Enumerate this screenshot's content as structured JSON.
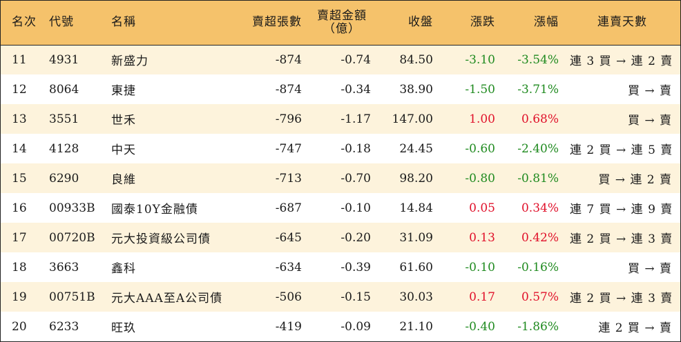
{
  "headers": {
    "rank": "名次",
    "code": "代號",
    "name": "名稱",
    "net_sell_shares": "賣超張數",
    "net_sell_amount_line1": "賣超金額",
    "net_sell_amount_line2": "（億）",
    "close": "收盤",
    "change": "漲跌",
    "change_pct": "漲幅",
    "streak": "連賣天數"
  },
  "rows": [
    {
      "rank": "11",
      "code": "4931",
      "name": "新盛力",
      "shares": "-874",
      "amount": "-0.74",
      "close": "84.50",
      "change": "-3.10",
      "pct": "-3.54%",
      "streak": "連 3 買 → 連 2 賣",
      "dir": "neg"
    },
    {
      "rank": "12",
      "code": "8064",
      "name": "東捷",
      "shares": "-874",
      "amount": "-0.34",
      "close": "38.90",
      "change": "-1.50",
      "pct": "-3.71%",
      "streak": "買 → 賣",
      "dir": "neg"
    },
    {
      "rank": "13",
      "code": "3551",
      "name": "世禾",
      "shares": "-796",
      "amount": "-1.17",
      "close": "147.00",
      "change": "1.00",
      "pct": "0.68%",
      "streak": "買 → 賣",
      "dir": "pos"
    },
    {
      "rank": "14",
      "code": "4128",
      "name": "中天",
      "shares": "-747",
      "amount": "-0.18",
      "close": "24.45",
      "change": "-0.60",
      "pct": "-2.40%",
      "streak": "連 2 買 → 連 5 賣",
      "dir": "neg"
    },
    {
      "rank": "15",
      "code": "6290",
      "name": "良維",
      "shares": "-713",
      "amount": "-0.70",
      "close": "98.20",
      "change": "-0.80",
      "pct": "-0.81%",
      "streak": "買 → 連 2 賣",
      "dir": "neg"
    },
    {
      "rank": "16",
      "code": "00933B",
      "name": "國泰10Y金融債",
      "shares": "-687",
      "amount": "-0.10",
      "close": "14.84",
      "change": "0.05",
      "pct": "0.34%",
      "streak": "連 7 買 → 連 9 賣",
      "dir": "pos"
    },
    {
      "rank": "17",
      "code": "00720B",
      "name": "元大投資級公司債",
      "shares": "-645",
      "amount": "-0.20",
      "close": "31.09",
      "change": "0.13",
      "pct": "0.42%",
      "streak": "連 2 買 → 連 3 賣",
      "dir": "pos"
    },
    {
      "rank": "18",
      "code": "3663",
      "name": "鑫科",
      "shares": "-634",
      "amount": "-0.39",
      "close": "61.60",
      "change": "-0.10",
      "pct": "-0.16%",
      "streak": "買 → 賣",
      "dir": "neg"
    },
    {
      "rank": "19",
      "code": "00751B",
      "name": "元大AAA至A公司債",
      "shares": "-506",
      "amount": "-0.15",
      "close": "30.03",
      "change": "0.17",
      "pct": "0.57%",
      "streak": "連 2 買 → 連 3 賣",
      "dir": "pos"
    },
    {
      "rank": "20",
      "code": "6233",
      "name": "旺玖",
      "shares": "-419",
      "amount": "-0.09",
      "close": "21.10",
      "change": "-0.40",
      "pct": "-1.86%",
      "streak": "連 2 買 → 賣",
      "dir": "neg"
    }
  ],
  "colors": {
    "header_bg": "#f5c26b",
    "odd_row_bg": "#fdf3dc",
    "up": "#e0102a",
    "down": "#1f8a1f"
  }
}
